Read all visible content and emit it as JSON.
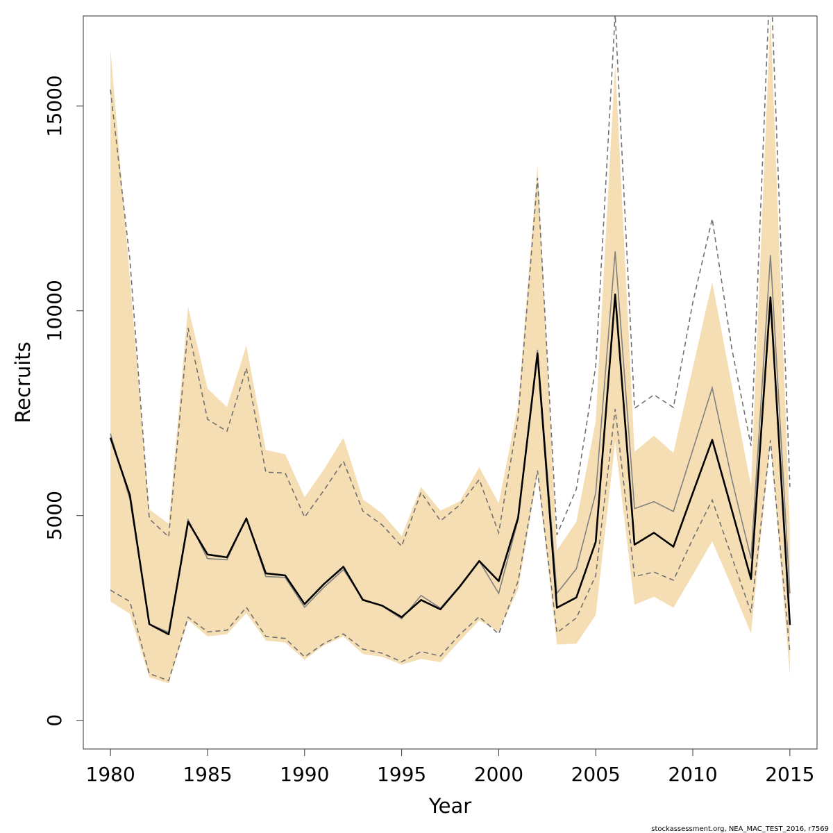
{
  "chart_data": {
    "type": "line",
    "title": "",
    "xlabel": "Year",
    "ylabel": "Recruits",
    "xlim": [
      1978.6,
      2016.4
    ],
    "ylim": [
      -700,
      17200
    ],
    "x_ticks": [
      1980,
      1985,
      1990,
      1995,
      2000,
      2005,
      2010,
      2015
    ],
    "y_ticks": [
      0,
      5000,
      10000,
      15000
    ],
    "grid": false,
    "legend": "none",
    "credit": "stockassessment.org, NEA_MAC_TEST_2016, r7569",
    "colors": {
      "band": "#f5deb3",
      "main_line": "#000000",
      "ref_line": "#808080",
      "ref_dashed": "#707070"
    },
    "x": [
      1980,
      1981,
      1982,
      1983,
      1984,
      1985,
      1986,
      1987,
      1988,
      1989,
      1990,
      1991,
      1992,
      1993,
      1994,
      1995,
      1996,
      1997,
      1998,
      1999,
      2000,
      2001,
      2002,
      2003,
      2004,
      2005,
      2006,
      2007,
      2008,
      2009,
      2010,
      2011,
      2012,
      2013,
      2014,
      2015
    ],
    "series": [
      {
        "role": "ci_band",
        "upper": [
          16400,
          10800,
          5150,
          4800,
          10100,
          8100,
          7650,
          9150,
          6600,
          6500,
          5450,
          6130,
          6900,
          5400,
          5050,
          4500,
          5700,
          5120,
          5350,
          6180,
          5300,
          7700,
          13550,
          4150,
          4850,
          7300,
          16050,
          6560,
          6950,
          6530,
          8610,
          10700,
          8200,
          5720,
          17200,
          4700
        ],
        "lower": [
          2900,
          2600,
          1050,
          900,
          2450,
          2050,
          2100,
          2620,
          1950,
          1900,
          1480,
          1830,
          2050,
          1620,
          1550,
          1360,
          1500,
          1420,
          1940,
          2440,
          2170,
          3200,
          5990,
          1850,
          1870,
          2570,
          6800,
          2820,
          3020,
          2750,
          3550,
          4370,
          3270,
          2120,
          6800,
          1100
        ]
      },
      {
        "role": "main_estimate",
        "values": [
          6900,
          5500,
          2350,
          2100,
          4850,
          4050,
          3980,
          4930,
          3590,
          3540,
          2840,
          3330,
          3750,
          2940,
          2800,
          2520,
          2940,
          2710,
          3270,
          3890,
          3400,
          4950,
          8960,
          2750,
          3000,
          4360,
          10400,
          4290,
          4580,
          4240,
          5550,
          6850,
          5150,
          3450,
          10330,
          2330
        ]
      },
      {
        "role": "reference_estimate",
        "values": [
          7000,
          5400,
          2350,
          2150,
          4900,
          3950,
          3920,
          4940,
          3510,
          3490,
          2760,
          3250,
          3680,
          2960,
          2790,
          2480,
          3050,
          2740,
          3290,
          3890,
          3100,
          4900,
          9050,
          3100,
          3700,
          5550,
          11450,
          5170,
          5340,
          5100,
          6600,
          8120,
          5900,
          3950,
          11360,
          3100
        ]
      },
      {
        "role": "reference_upper",
        "values": [
          15400,
          11250,
          4920,
          4480,
          9580,
          7350,
          7060,
          8600,
          6060,
          6040,
          4960,
          5620,
          6330,
          5110,
          4770,
          4250,
          5570,
          4870,
          5260,
          5880,
          4580,
          7400,
          13250,
          4530,
          5650,
          8650,
          17250,
          7620,
          7950,
          7640,
          10200,
          12250,
          9100,
          6700,
          18400,
          5700
        ]
      },
      {
        "role": "reference_lower",
        "values": [
          3180,
          2900,
          1140,
          970,
          2520,
          2160,
          2200,
          2760,
          2050,
          2000,
          1550,
          1880,
          2110,
          1740,
          1640,
          1430,
          1680,
          1570,
          2100,
          2530,
          2110,
          3400,
          6100,
          2140,
          2500,
          3540,
          7600,
          3510,
          3620,
          3420,
          4430,
          5380,
          4000,
          2630,
          6840,
          1650
        ]
      }
    ]
  }
}
